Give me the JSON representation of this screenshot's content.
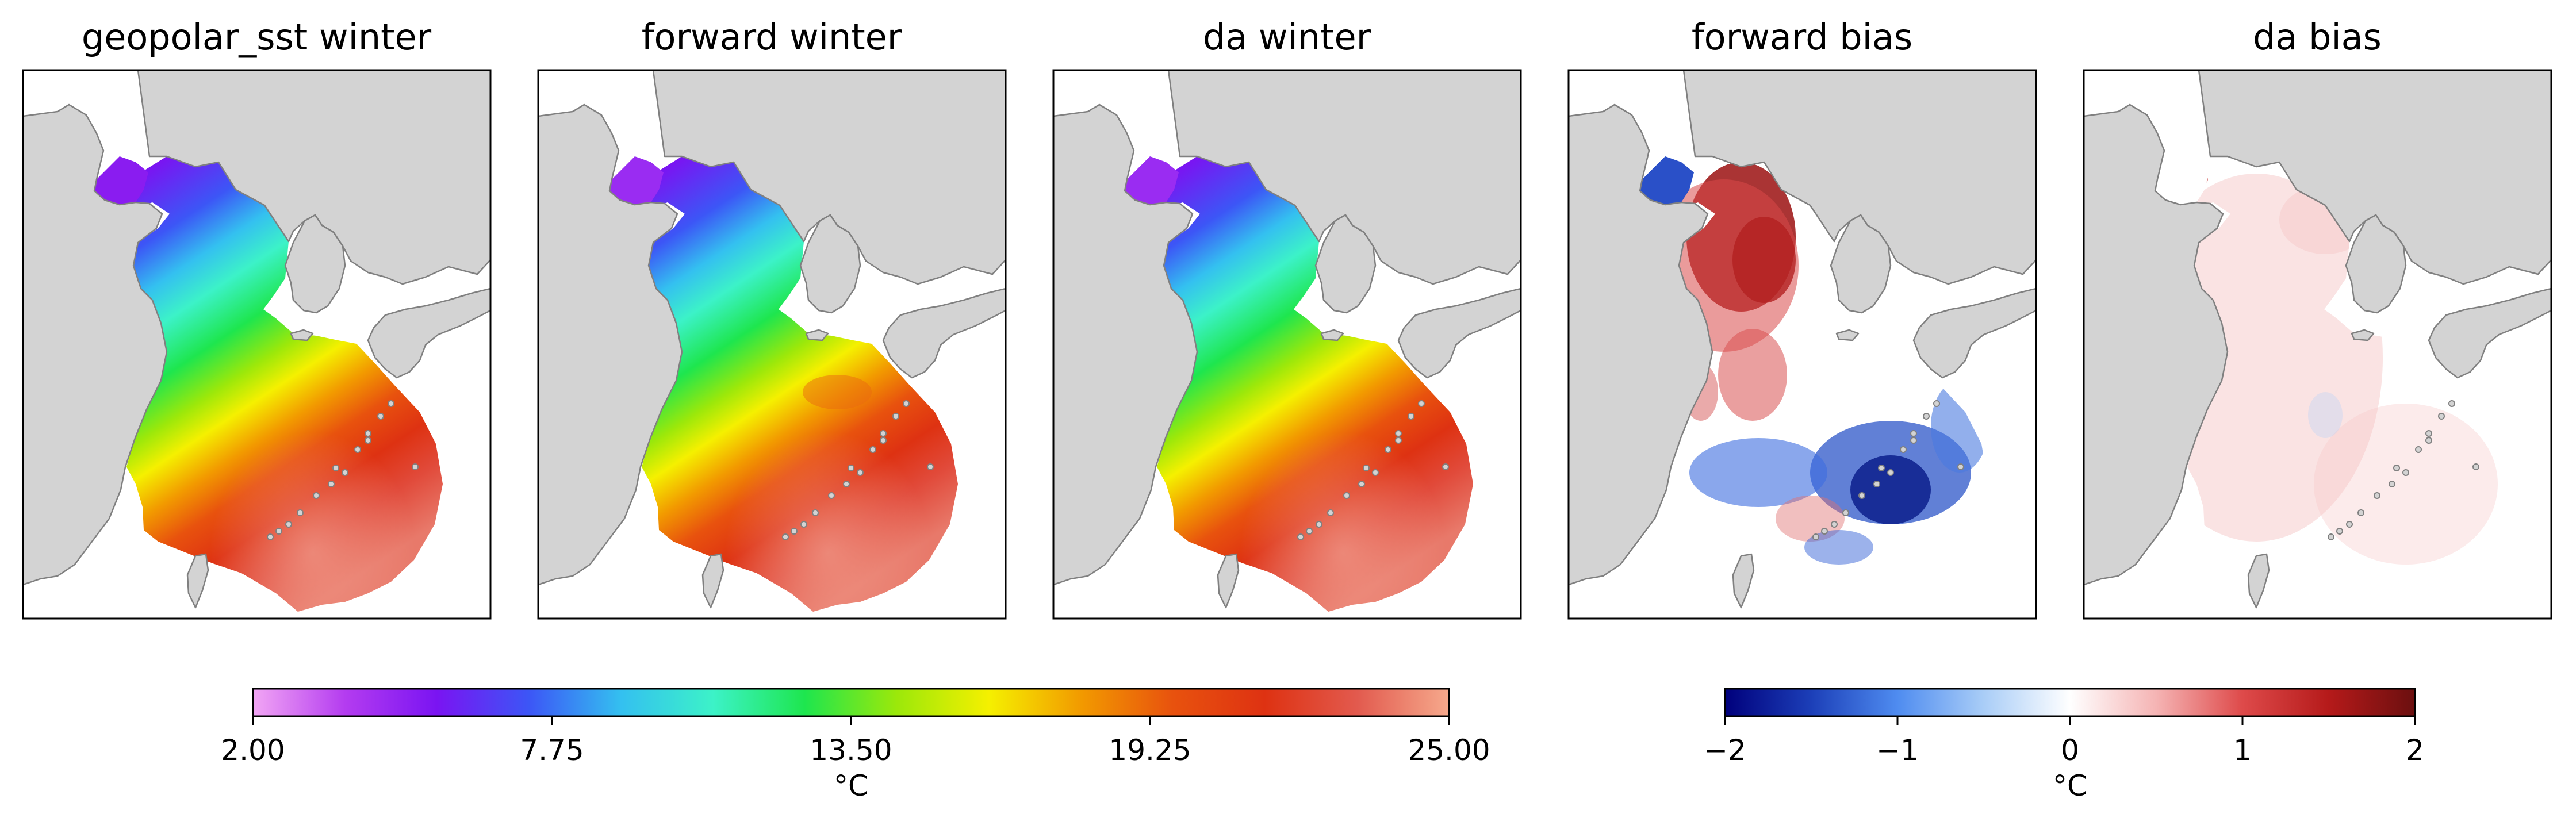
{
  "panels": [
    {
      "title": "geopolar_sst winter",
      "kind": "sst",
      "variant": 0
    },
    {
      "title": "forward winter",
      "kind": "sst",
      "variant": 1
    },
    {
      "title": "da winter",
      "kind": "sst",
      "variant": 2
    },
    {
      "title": "forward bias",
      "kind": "bias",
      "variant": 3
    },
    {
      "title": "da bias",
      "kind": "bias",
      "variant": 4
    }
  ],
  "colorbars": [
    {
      "name": "sst",
      "unit": "°C",
      "min": 2.0,
      "max": 25.0,
      "ticks": [
        "2.00",
        "7.75",
        "13.50",
        "19.25",
        "25.00"
      ],
      "colors": [
        "#f2a6f4",
        "#b43cf0",
        "#7a14f2",
        "#3c56f6",
        "#34c0f0",
        "#3cf2c8",
        "#1ee64e",
        "#9ce80a",
        "#f5f000",
        "#f29a00",
        "#e8520e",
        "#de3212",
        "#e25a4e",
        "#f6a98c"
      ]
    },
    {
      "name": "bias",
      "unit": "°C",
      "min": -2,
      "max": 2,
      "ticks": [
        "−2",
        "−1",
        "0",
        "1",
        "2"
      ],
      "colors": [
        "#00007c",
        "#1c3fb8",
        "#4f8cf0",
        "#a9cdf7",
        "#ffffff",
        "#f5b4b4",
        "#de4a4a",
        "#b51a1a",
        "#6b0f0f"
      ]
    }
  ],
  "map_colors": {
    "land": "#d3d3d3",
    "coast": "#808080",
    "frame": "#000000",
    "ocean_empty": "#ffffff"
  }
}
